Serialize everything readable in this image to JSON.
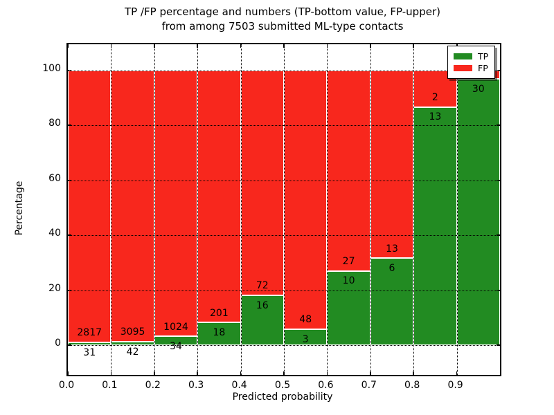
{
  "chart_data": {
    "type": "bar",
    "subtype": "stacked-percent",
    "title": "TP /FP percentage and numbers (TP-bottom value, FP-upper)",
    "subtitle": "from among 7503 submitted ML-type contacts",
    "xlabel": "Predicted probability",
    "ylabel": "Percentage",
    "total_contacts": 7503,
    "xlim": [
      0.0,
      1.0
    ],
    "ylim": [
      -11,
      110
    ],
    "grid": "dotted",
    "x_tick_labels": [
      "0.0",
      "0.1",
      "0.2",
      "0.3",
      "0.4",
      "0.5",
      "0.6",
      "0.7",
      "0.8",
      "0.9"
    ],
    "y_tick_values": [
      0,
      20,
      40,
      60,
      80,
      100
    ],
    "y_tick_labels": [
      "0",
      "20",
      "40",
      "60",
      "80",
      "100"
    ],
    "bin_width": 0.1,
    "bin_starts": [
      0.0,
      0.1,
      0.2,
      0.3,
      0.4,
      0.5,
      0.6,
      0.7,
      0.8,
      0.9
    ],
    "series": [
      {
        "name": "TP",
        "color": "#228b22",
        "counts": [
          31,
          42,
          34,
          18,
          16,
          3,
          10,
          6,
          13,
          30
        ]
      },
      {
        "name": "FP",
        "color": "#f8271d",
        "counts": [
          2817,
          3095,
          1024,
          201,
          72,
          48,
          27,
          13,
          2,
          1
        ]
      }
    ],
    "tp_labels": [
      "31",
      "42",
      "34",
      "18",
      "16",
      "3",
      "10",
      "6",
      "13",
      "30"
    ],
    "fp_labels": [
      "2817",
      "3095",
      "1024",
      "201",
      "72",
      "48",
      "27",
      "13",
      "2",
      ""
    ],
    "legend": {
      "position": "upper-right",
      "items": [
        {
          "label": "TP",
          "color": "#228b22"
        },
        {
          "label": "FP",
          "color": "#f8271d"
        }
      ]
    },
    "colors": {
      "tp": "#228b22",
      "fp": "#f8271d",
      "grid": "#000000",
      "frame": "#000000",
      "background": "#ffffff"
    }
  }
}
